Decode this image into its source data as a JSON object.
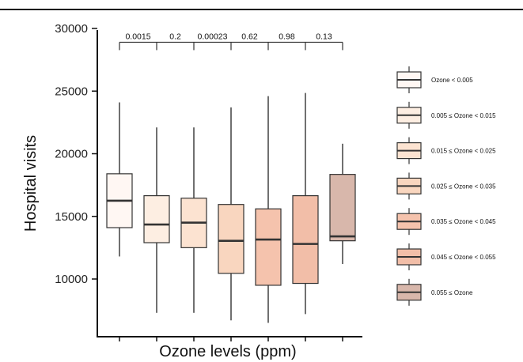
{
  "chart_data": {
    "type": "boxplot",
    "title": "",
    "xlabel": "Ozone levels (ppm)",
    "ylabel": "Hospital visits",
    "ylim": [
      5400,
      30000
    ],
    "yticks": [
      10000,
      15000,
      20000,
      25000,
      30000
    ],
    "ytick_labels": [
      "10000",
      "15000",
      "20000",
      "25000",
      "30000"
    ],
    "grid": false,
    "legend_position": "right",
    "categories": [
      "Ozone < 0.005",
      "0.005 ≤ Ozone < 0.015",
      "0.015 ≤ Ozone < 0.025",
      "0.025 ≤ Ozone < 0.035",
      "0.035 ≤ Ozone < 0.045",
      "0.045 ≤ Ozone < 0.055",
      "0.055 ≤ Ozone"
    ],
    "colors": [
      "#fff7f3",
      "#fdeee2",
      "#fce3d1",
      "#f9d6bf",
      "#f5c3ad",
      "#f2bea8",
      "#d8b7ab"
    ],
    "boxes": [
      {
        "whisker_low": 11800,
        "q1": 14100,
        "median": 16250,
        "q3": 18400,
        "whisker_high": 24100
      },
      {
        "whisker_low": 7300,
        "q1": 12900,
        "median": 14350,
        "q3": 16650,
        "whisker_high": 22100
      },
      {
        "whisker_low": 7300,
        "q1": 12500,
        "median": 14500,
        "q3": 16450,
        "whisker_high": 22100
      },
      {
        "whisker_low": 6700,
        "q1": 10450,
        "median": 13050,
        "q3": 15950,
        "whisker_high": 23700
      },
      {
        "whisker_low": 6500,
        "q1": 9500,
        "median": 13150,
        "q3": 15600,
        "whisker_high": 24600
      },
      {
        "whisker_low": 7200,
        "q1": 9650,
        "median": 12800,
        "q3": 16650,
        "whisker_high": 24850
      },
      {
        "whisker_low": 11200,
        "q1": 13050,
        "median": 13400,
        "q3": 18350,
        "whisker_high": 20800
      }
    ],
    "pvalue_bracket_y": 28900,
    "pvalues": [
      "0.0015",
      "0.2",
      "0.00023",
      "0.62",
      "0.98",
      "0.13"
    ]
  }
}
